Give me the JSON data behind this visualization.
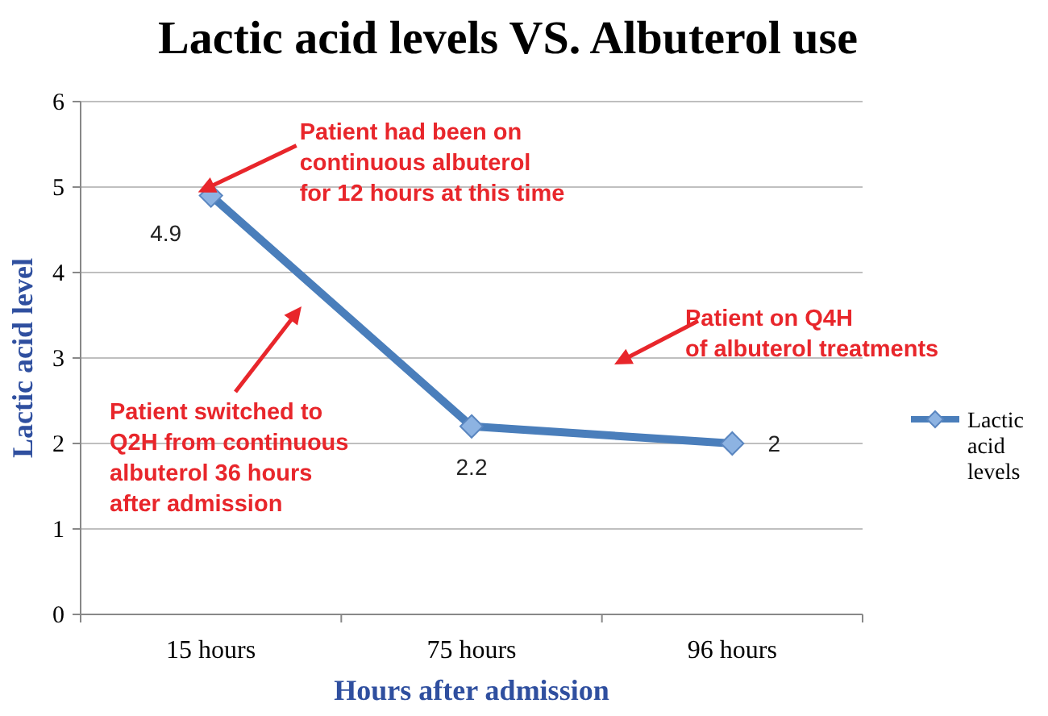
{
  "chart_data": {
    "type": "line",
    "title": "Lactic acid levels VS. Albuterol use",
    "xlabel": "Hours after admission",
    "ylabel": "Lactic acid level",
    "categories": [
      "15 hours",
      "75 hours",
      "96 hours"
    ],
    "series": [
      {
        "name": "Lactic acid levels",
        "color": "#4a7ebb",
        "values": [
          4.9,
          2.2,
          2
        ]
      }
    ],
    "ylim": [
      0,
      6
    ],
    "yticks": [
      0,
      1,
      2,
      3,
      4,
      5,
      6
    ],
    "grid": "y",
    "legend": "right",
    "marker": "diamond",
    "line_style": "solid",
    "data_labels": true,
    "annotations": [
      {
        "text": "Patient had been on\ncontinuous albuterol\nfor 12 hours at this time",
        "x": "15 hours",
        "y": 4.9
      },
      "Patient switched to\nQ2H from continuous\nalbuterol 36 hours\nafter admission",
      "Patient on Q4H\nof albuterol treatments"
    ]
  }
}
